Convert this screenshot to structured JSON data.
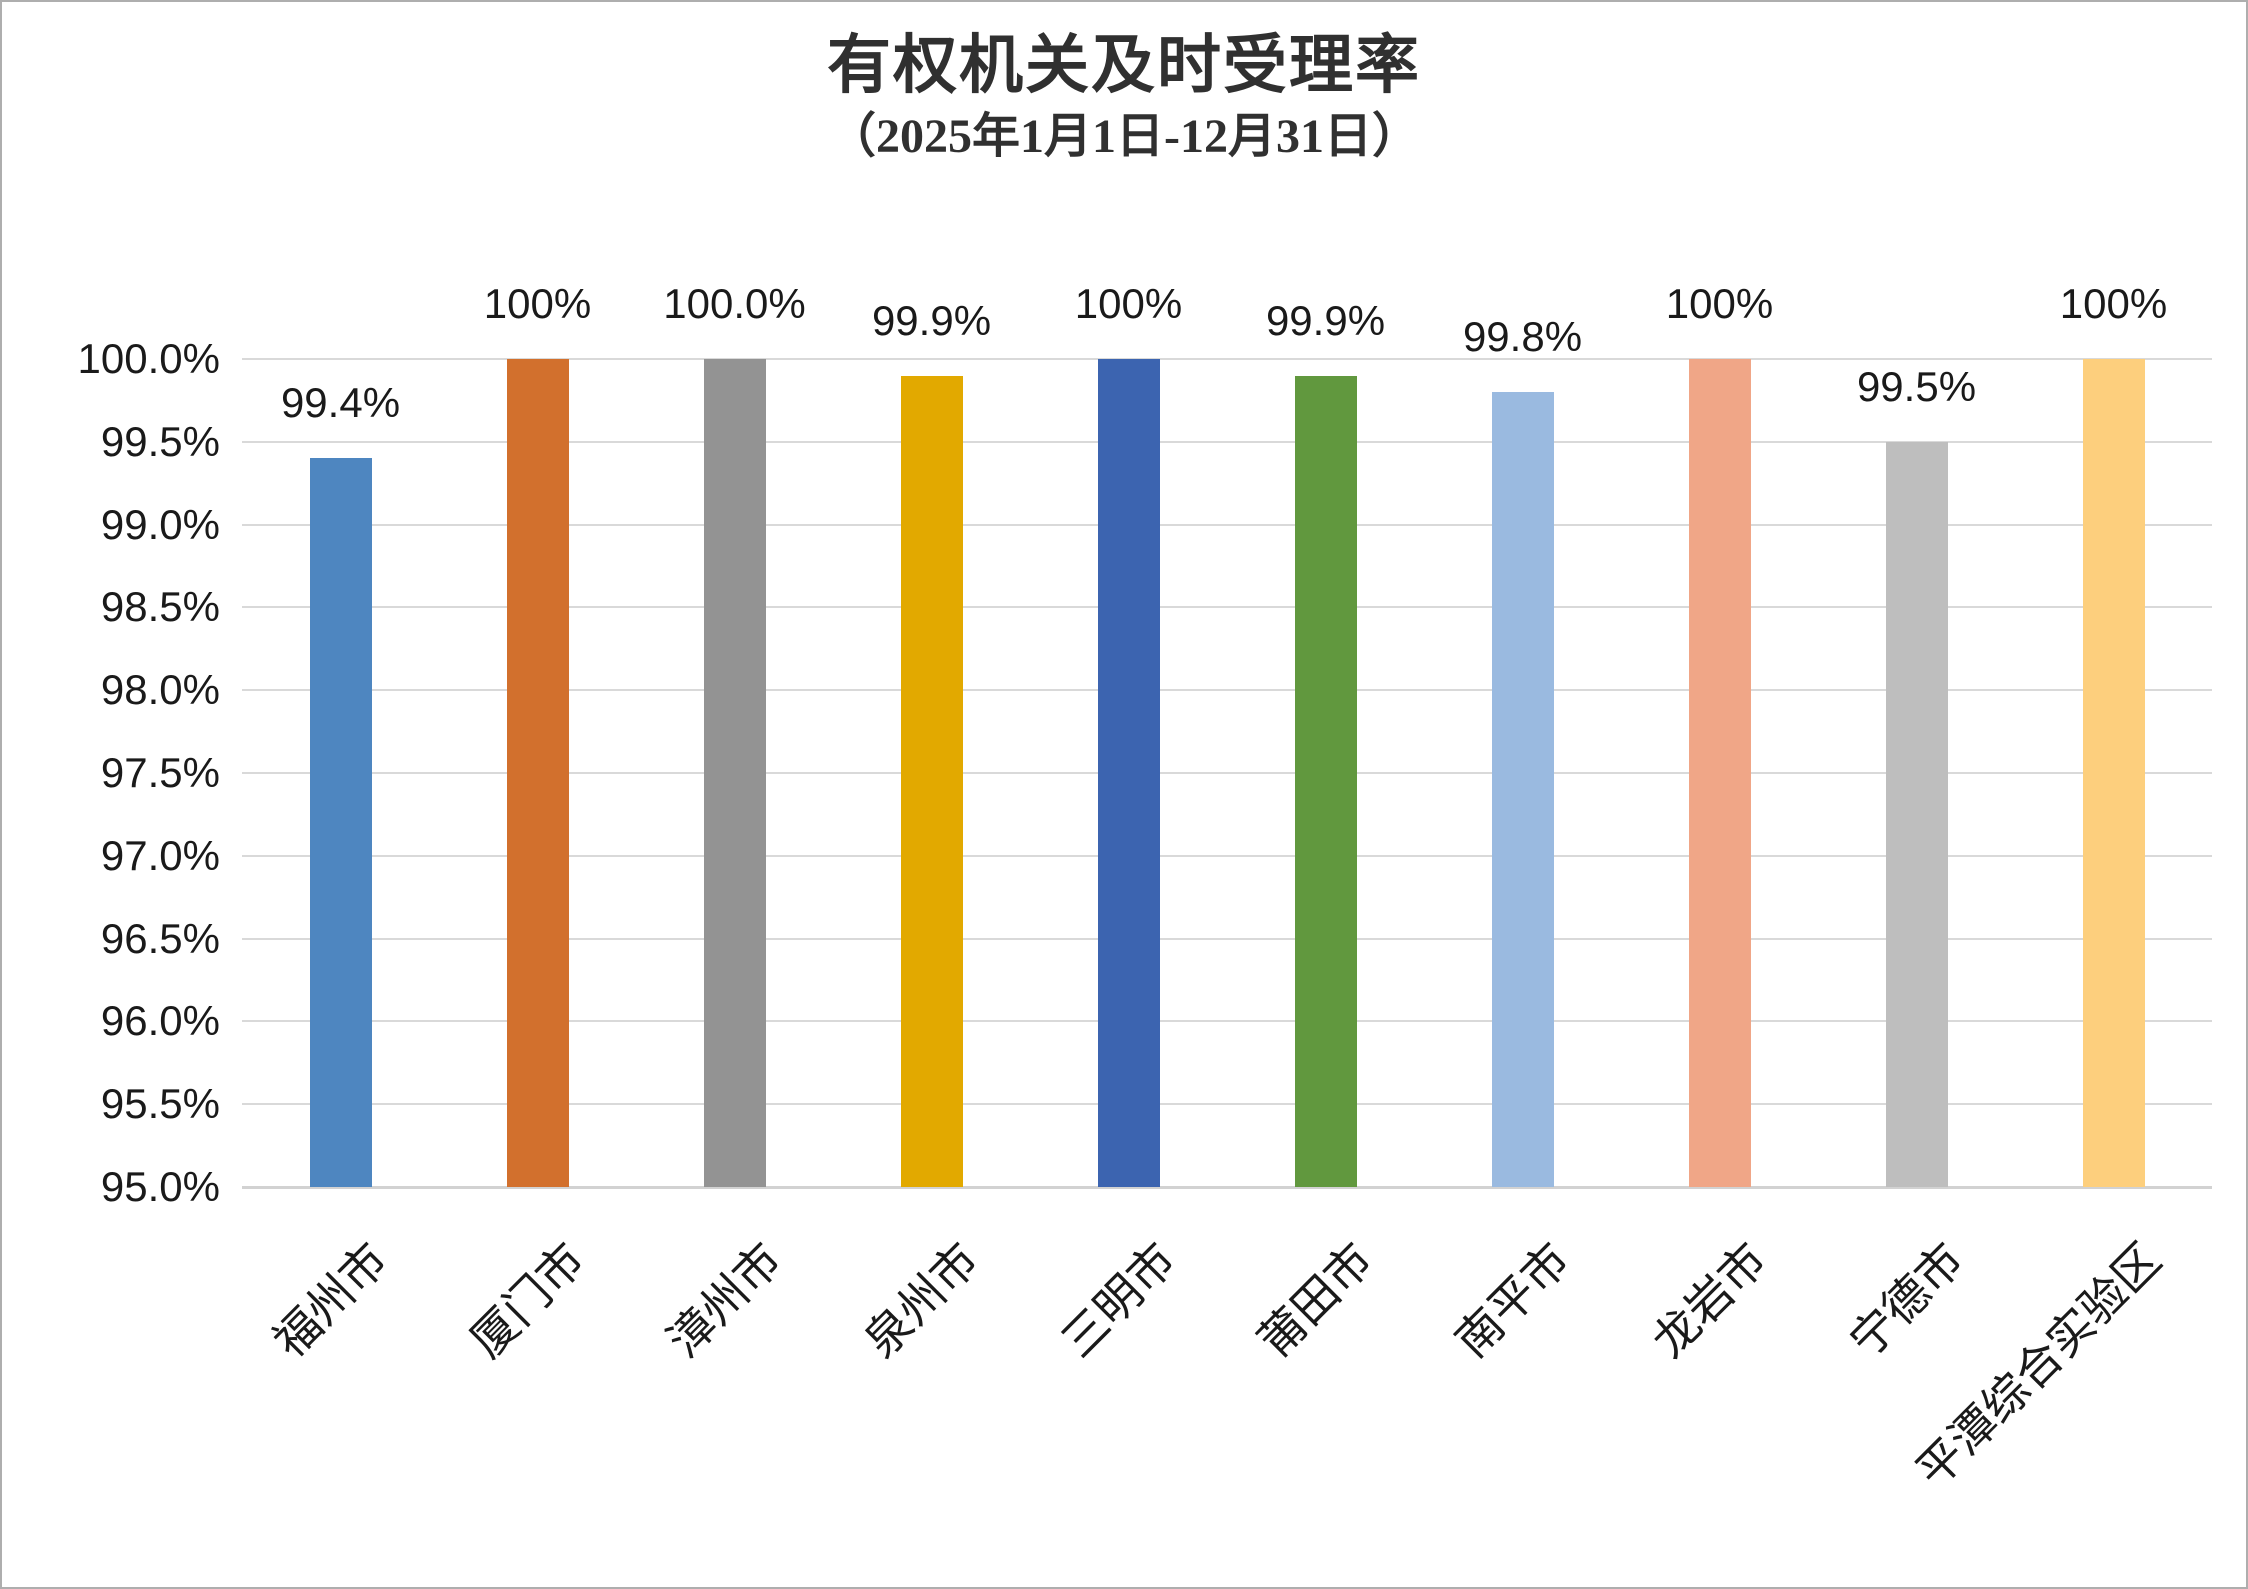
{
  "chart_data": {
    "type": "bar",
    "title": "有权机关及时受理率",
    "subtitle": "（2025年1月1日-12月31日）",
    "categories": [
      "福州市",
      "厦门市",
      "漳州市",
      "泉州市",
      "三明市",
      "莆田市",
      "南平市",
      "龙岩市",
      "宁德市",
      "平潭综合实验区"
    ],
    "values": [
      99.4,
      100,
      100,
      99.9,
      100,
      99.9,
      99.8,
      100,
      99.5,
      100
    ],
    "value_labels": [
      "99.4%",
      "100%",
      "100.0%",
      "99.9%",
      "100%",
      "99.9%",
      "99.8%",
      "100%",
      "99.5%",
      "100%"
    ],
    "bar_colors": [
      "#4E86C0",
      "#D2702D",
      "#939393",
      "#E2A900",
      "#3C64B0",
      "#61983E",
      "#9ABAE0",
      "#F0A687",
      "#BEBEBE",
      "#FDCF7D"
    ],
    "ylim": [
      95.0,
      100.0
    ],
    "ytick_step": 0.5,
    "yticks": [
      "95.0%",
      "95.5%",
      "96.0%",
      "96.5%",
      "97.0%",
      "97.5%",
      "98.0%",
      "98.5%",
      "99.0%",
      "99.5%",
      "100.0%"
    ],
    "xlabel": "",
    "ylabel": "",
    "grid": "horizontal",
    "legend": "none",
    "gridline_color": "#D9D9D9"
  }
}
